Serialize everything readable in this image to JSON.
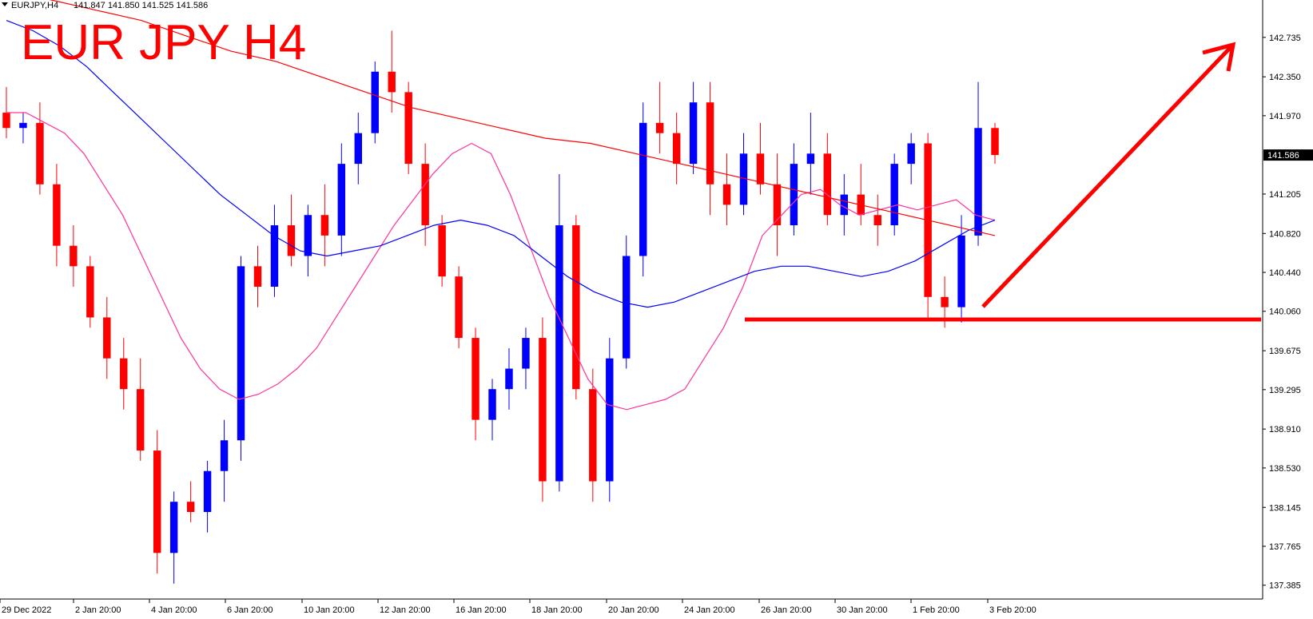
{
  "chart_data": {
    "type": "candlestick",
    "symbol_label": "EURJPY,H4",
    "ohlc_header": "141.847 141.850 141.525 141.586",
    "title": "EUR JPY H4",
    "current_price_label": "141.586",
    "y_range": [
      137.25,
      143.1
    ],
    "y_ticks": [
      "142.735",
      "142.350",
      "141.970",
      "141.586",
      "141.205",
      "140.820",
      "140.440",
      "140.060",
      "139.675",
      "139.295",
      "138.910",
      "138.530",
      "138.145",
      "137.765",
      "137.385"
    ],
    "x_ticks": [
      "29 Dec 2022",
      "2 Jan 20:00",
      "4 Jan 20:00",
      "6 Jan 20:00",
      "10 Jan 20:00",
      "12 Jan 20:00",
      "16 Jan 20:00",
      "18 Jan 20:00",
      "20 Jan 20:00",
      "24 Jan 20:00",
      "26 Jan 20:00",
      "30 Jan 20:00",
      "1 Feb 20:00",
      "3 Feb 20:00"
    ],
    "colors": {
      "bull": "#0000ff",
      "bear": "#ff0000",
      "ma_fast": "#ff3399",
      "ma_mid": "#0000ff",
      "ma_slow": "#ff0000",
      "annotation": "#ff0000"
    },
    "support_level": 139.98,
    "series": [
      {
        "role": "ma_fast",
        "values": [
          [
            0,
            142.0
          ],
          [
            1,
            142.0
          ],
          [
            2,
            141.9
          ],
          [
            3,
            141.8
          ],
          [
            4,
            141.6
          ],
          [
            5,
            141.3
          ],
          [
            6,
            141.0
          ],
          [
            7,
            140.6
          ],
          [
            8,
            140.2
          ],
          [
            9,
            139.8
          ],
          [
            10,
            139.5
          ],
          [
            11,
            139.3
          ],
          [
            12,
            139.2
          ],
          [
            13,
            139.25
          ],
          [
            14,
            139.35
          ],
          [
            15,
            139.5
          ],
          [
            16,
            139.7
          ],
          [
            17,
            140.0
          ],
          [
            18,
            140.3
          ],
          [
            19,
            140.6
          ],
          [
            20,
            140.9
          ],
          [
            21,
            141.15
          ],
          [
            22,
            141.4
          ],
          [
            23,
            141.6
          ],
          [
            24,
            141.7
          ],
          [
            25,
            141.6
          ],
          [
            26,
            141.2
          ],
          [
            27,
            140.7
          ],
          [
            28,
            140.2
          ],
          [
            29,
            139.8
          ],
          [
            30,
            139.4
          ],
          [
            31,
            139.15
          ],
          [
            32,
            139.1
          ],
          [
            33,
            139.15
          ],
          [
            34,
            139.2
          ],
          [
            35,
            139.3
          ],
          [
            36,
            139.6
          ],
          [
            37,
            139.9
          ],
          [
            38,
            140.3
          ],
          [
            39,
            140.8
          ],
          [
            40,
            141.0
          ],
          [
            41,
            141.2
          ],
          [
            42,
            141.25
          ],
          [
            43,
            141.1
          ],
          [
            44,
            141.0
          ],
          [
            45,
            141.05
          ],
          [
            46,
            141.1
          ],
          [
            47,
            141.05
          ],
          [
            48,
            141.1
          ],
          [
            49,
            141.15
          ],
          [
            50,
            141.0
          ],
          [
            51,
            140.95
          ]
        ]
      },
      {
        "role": "ma_mid",
        "values": [
          [
            0,
            142.9
          ],
          [
            1,
            142.8
          ],
          [
            2,
            142.65
          ],
          [
            3,
            142.45
          ],
          [
            4,
            142.2
          ],
          [
            5,
            141.95
          ],
          [
            6,
            141.7
          ],
          [
            7,
            141.45
          ],
          [
            8,
            141.2
          ],
          [
            9,
            141.0
          ],
          [
            10,
            140.8
          ],
          [
            11,
            140.65
          ],
          [
            12,
            140.6
          ],
          [
            13,
            140.65
          ],
          [
            14,
            140.7
          ],
          [
            15,
            140.8
          ],
          [
            16,
            140.9
          ],
          [
            17,
            140.95
          ],
          [
            18,
            140.9
          ],
          [
            19,
            140.8
          ],
          [
            20,
            140.6
          ],
          [
            21,
            140.4
          ],
          [
            22,
            140.25
          ],
          [
            23,
            140.15
          ],
          [
            24,
            140.1
          ],
          [
            25,
            140.15
          ],
          [
            26,
            140.25
          ],
          [
            27,
            140.35
          ],
          [
            28,
            140.45
          ],
          [
            29,
            140.5
          ],
          [
            30,
            140.5
          ],
          [
            31,
            140.45
          ],
          [
            32,
            140.4
          ],
          [
            33,
            140.45
          ],
          [
            34,
            140.55
          ],
          [
            35,
            140.7
          ],
          [
            36,
            140.85
          ],
          [
            37,
            140.95
          ]
        ]
      },
      {
        "role": "ma_slow",
        "values": [
          [
            0,
            143.2
          ],
          [
            1,
            143.1
          ],
          [
            2,
            143.0
          ],
          [
            3,
            142.9
          ],
          [
            4,
            142.75
          ],
          [
            5,
            142.6
          ],
          [
            6,
            142.5
          ],
          [
            7,
            142.35
          ],
          [
            8,
            142.2
          ],
          [
            9,
            142.05
          ],
          [
            10,
            141.95
          ],
          [
            11,
            141.85
          ],
          [
            12,
            141.75
          ],
          [
            13,
            141.7
          ],
          [
            14,
            141.6
          ],
          [
            15,
            141.5
          ],
          [
            16,
            141.4
          ],
          [
            17,
            141.3
          ],
          [
            18,
            141.2
          ],
          [
            19,
            141.1
          ],
          [
            20,
            141.0
          ],
          [
            21,
            140.9
          ],
          [
            22,
            140.8
          ]
        ]
      }
    ],
    "candles": [
      [
        142.0,
        142.25,
        141.75,
        141.85
      ],
      [
        141.85,
        142.0,
        141.7,
        141.9
      ],
      [
        141.9,
        142.1,
        141.2,
        141.3
      ],
      [
        141.3,
        141.5,
        140.5,
        140.7
      ],
      [
        140.7,
        140.9,
        140.3,
        140.5
      ],
      [
        140.5,
        140.6,
        139.9,
        140.0
      ],
      [
        140.0,
        140.2,
        139.4,
        139.6
      ],
      [
        139.6,
        139.8,
        139.1,
        139.3
      ],
      [
        139.3,
        139.6,
        138.6,
        138.7
      ],
      [
        138.7,
        138.9,
        137.5,
        137.7
      ],
      [
        137.7,
        138.3,
        137.4,
        138.2
      ],
      [
        138.2,
        138.4,
        138.0,
        138.1
      ],
      [
        138.1,
        138.6,
        137.9,
        138.5
      ],
      [
        138.5,
        139.0,
        138.2,
        138.8
      ],
      [
        138.8,
        140.6,
        138.6,
        140.5
      ],
      [
        140.5,
        140.7,
        140.1,
        140.3
      ],
      [
        140.3,
        141.1,
        140.2,
        140.9
      ],
      [
        140.9,
        141.2,
        140.5,
        140.6
      ],
      [
        140.6,
        141.1,
        140.4,
        141.0
      ],
      [
        141.0,
        141.3,
        140.5,
        140.8
      ],
      [
        140.8,
        141.7,
        140.6,
        141.5
      ],
      [
        141.5,
        142.0,
        141.3,
        141.8
      ],
      [
        141.8,
        142.5,
        141.7,
        142.4
      ],
      [
        142.4,
        142.8,
        142.0,
        142.2
      ],
      [
        142.2,
        142.3,
        141.4,
        141.5
      ],
      [
        141.5,
        141.7,
        140.7,
        140.9
      ],
      [
        140.9,
        141.0,
        140.3,
        140.4
      ],
      [
        140.4,
        140.5,
        139.7,
        139.8
      ],
      [
        139.8,
        139.9,
        138.8,
        139.0
      ],
      [
        139.0,
        139.4,
        138.8,
        139.3
      ],
      [
        139.3,
        139.7,
        139.1,
        139.5
      ],
      [
        139.5,
        139.9,
        139.3,
        139.8
      ],
      [
        139.8,
        140.0,
        138.2,
        138.4
      ],
      [
        138.4,
        141.4,
        138.3,
        140.9
      ],
      [
        140.9,
        141.0,
        139.2,
        139.3
      ],
      [
        139.3,
        139.5,
        138.2,
        138.4
      ],
      [
        138.4,
        139.8,
        138.2,
        139.6
      ],
      [
        139.6,
        140.8,
        139.5,
        140.6
      ],
      [
        140.6,
        142.1,
        140.4,
        141.9
      ],
      [
        141.9,
        142.3,
        141.6,
        141.8
      ],
      [
        141.8,
        142.0,
        141.3,
        141.5
      ],
      [
        141.5,
        142.3,
        141.4,
        142.1
      ],
      [
        142.1,
        142.3,
        141.0,
        141.3
      ],
      [
        141.3,
        141.6,
        140.9,
        141.1
      ],
      [
        141.1,
        141.8,
        141.0,
        141.6
      ],
      [
        141.6,
        141.9,
        141.2,
        141.3
      ],
      [
        141.3,
        141.6,
        140.6,
        140.9
      ],
      [
        140.9,
        141.7,
        140.8,
        141.5
      ],
      [
        141.5,
        142.0,
        141.2,
        141.6
      ],
      [
        141.6,
        141.8,
        140.9,
        141.0
      ],
      [
        141.0,
        141.4,
        140.8,
        141.2
      ],
      [
        141.2,
        141.5,
        140.9,
        141.0
      ],
      [
        141.0,
        141.2,
        140.7,
        140.9
      ],
      [
        140.9,
        141.6,
        140.8,
        141.5
      ],
      [
        141.5,
        141.8,
        141.3,
        141.7
      ],
      [
        141.7,
        141.8,
        140.0,
        140.2
      ],
      [
        140.2,
        140.4,
        139.9,
        140.1
      ],
      [
        140.1,
        141.0,
        139.95,
        140.8
      ],
      [
        140.8,
        142.3,
        140.7,
        141.85
      ],
      [
        141.85,
        141.9,
        141.5,
        141.586
      ]
    ]
  }
}
